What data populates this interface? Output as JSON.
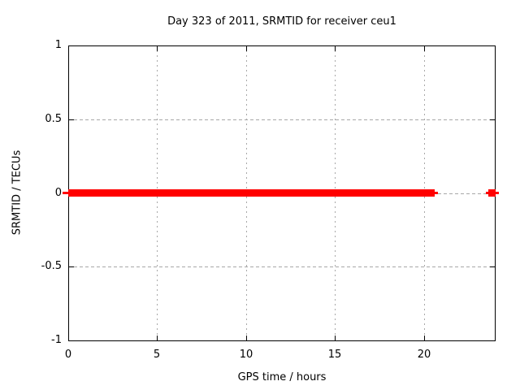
{
  "page": {
    "background": "#ffffff"
  },
  "chart_data": {
    "type": "line",
    "title": "Day 323 of 2011, SRMTID for receiver ceu1",
    "xlabel": "GPS time / hours",
    "ylabel": "SRMTID / TECUs",
    "xlim": [
      0,
      24
    ],
    "ylim": [
      -1,
      1
    ],
    "xticks": [
      {
        "value": 0,
        "label": "0"
      },
      {
        "value": 5,
        "label": "5"
      },
      {
        "value": 10,
        "label": "10"
      },
      {
        "value": 15,
        "label": "15"
      },
      {
        "value": 20,
        "label": "20"
      }
    ],
    "yticks": [
      {
        "value": 1,
        "label": "1"
      },
      {
        "value": 0.5,
        "label": "0.5"
      },
      {
        "value": 0,
        "label": "0"
      },
      {
        "value": -0.5,
        "label": "-0.5"
      },
      {
        "value": -1,
        "label": "-1"
      }
    ],
    "grid": true,
    "legend": "none",
    "series": [
      {
        "name": "SRMTID",
        "color": "#ff0000",
        "style": "points-with-errorbars",
        "segments": [
          {
            "kind": "band",
            "x_start": 0,
            "x_end": 20.6,
            "y": 0
          },
          {
            "kind": "point",
            "x": 23.85,
            "y": 0
          }
        ]
      }
    ],
    "colors": {
      "data": "#ff0000",
      "grid": "#a8a8a8",
      "border": "#000000",
      "text": "#000000",
      "background": "#ffffff"
    }
  }
}
